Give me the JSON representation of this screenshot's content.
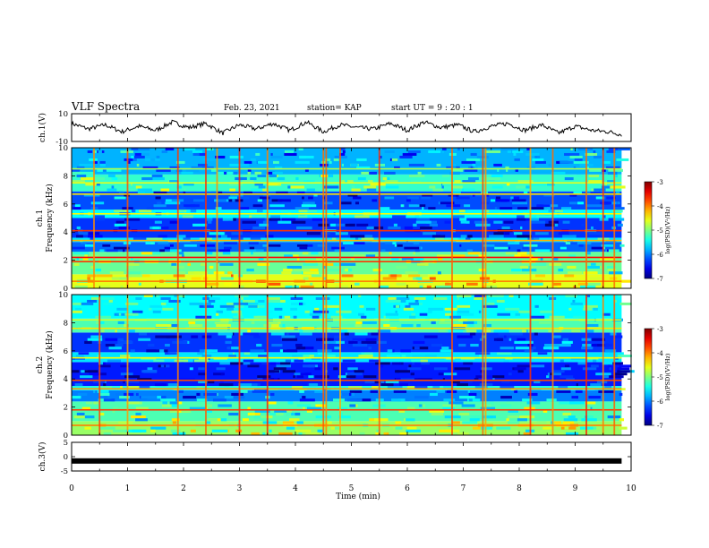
{
  "header": {
    "title": "VLF Spectra",
    "date": "Feb. 23, 2021",
    "station": "station= KAP",
    "start": "start  UT =   9  : 20 : 1"
  },
  "chart_data": [
    {
      "type": "line",
      "panel": "ch1-waveform",
      "ylabel": "ch.1(V)",
      "ylim": [
        -10,
        10
      ],
      "yticks": [
        "10",
        "-10"
      ],
      "x_range": [
        0,
        9.83
      ],
      "series": [
        {
          "x": [
            0,
            0.3,
            0.6,
            0.9,
            1.2,
            1.5,
            1.8,
            2.1,
            2.4,
            2.7,
            3.0,
            3.3,
            3.6,
            3.9,
            4.2,
            4.5,
            4.8,
            5.1,
            5.4,
            5.7,
            6.0,
            6.3,
            6.6,
            6.9,
            7.2,
            7.5,
            7.8,
            8.1,
            8.4,
            8.7,
            9.0,
            9.3,
            9.6,
            9.83
          ],
          "values": [
            3,
            -1,
            2,
            -3,
            1,
            -2,
            4,
            0,
            3,
            -4,
            2,
            -1,
            3,
            -2,
            4,
            -3,
            2,
            0,
            -1,
            3,
            -2,
            4,
            0,
            2,
            -3,
            1,
            3,
            -2,
            2,
            -4,
            1,
            -2,
            -3,
            -5
          ]
        }
      ]
    },
    {
      "type": "heatmap",
      "panel": "ch1-spectrogram",
      "ylabel": "ch.1\nFrequency (kHz)",
      "ylabel_lines": [
        "ch.1",
        "Frequency (kHz)"
      ],
      "ylim": [
        0,
        10
      ],
      "yticks": [
        0,
        2,
        4,
        6,
        8,
        10
      ],
      "colorbar": {
        "label": "log(PSD)(V²/Hz)",
        "ticks": [
          "-3",
          "-4",
          "-5",
          "-6",
          "-7"
        ],
        "range": [
          -7,
          -3
        ]
      },
      "bands": [
        {
          "f": [
            0.0,
            1.0
          ],
          "level": -4.6
        },
        {
          "f": [
            1.0,
            2.6
          ],
          "level": -5.1
        },
        {
          "f": [
            2.6,
            3.3
          ],
          "level": -6.1
        },
        {
          "f": [
            3.3,
            3.6
          ],
          "level": -5.6
        },
        {
          "f": [
            3.6,
            5.0
          ],
          "level": -6.3
        },
        {
          "f": [
            5.0,
            5.6
          ],
          "level": -5.5
        },
        {
          "f": [
            5.6,
            6.9
          ],
          "level": -6.2
        },
        {
          "f": [
            6.9,
            8.1
          ],
          "level": -5.3
        },
        {
          "f": [
            8.1,
            10.0
          ],
          "level": -5.8
        }
      ],
      "lines": [
        {
          "f": 0.5,
          "level": -4.0
        },
        {
          "f": 1.9,
          "level": -3.7
        },
        {
          "f": 2.2,
          "level": -3.5
        },
        {
          "f": 3.4,
          "level": -4.2
        },
        {
          "f": 4.1,
          "level": -3.7
        },
        {
          "f": 5.3,
          "level": -4.5
        },
        {
          "f": 6.7,
          "level": -4.4
        },
        {
          "f": 7.5,
          "level": -4.6
        },
        {
          "f": 8.5,
          "level": -4.8
        }
      ],
      "impulses_min": [
        0.4,
        1.0,
        1.9,
        2.4,
        2.6,
        3.0,
        3.5,
        4.5,
        4.55,
        4.8,
        5.5,
        6.8,
        7.35,
        7.4,
        8.2,
        8.6,
        9.2,
        9.5,
        9.7
      ]
    },
    {
      "type": "heatmap",
      "panel": "ch2-spectrogram",
      "ylabel": "ch.2\nFrequency (kHz)",
      "ylabel_lines": [
        "ch.2",
        "Frequency (kHz)"
      ],
      "ylim": [
        0,
        10
      ],
      "yticks": [
        0,
        2,
        4,
        6,
        8,
        10
      ],
      "colorbar": {
        "label": "log(PSD)(V²/Hz)",
        "ticks": [
          "-3",
          "-4",
          "-5",
          "-6",
          "-7"
        ],
        "range": [
          -7,
          -3
        ]
      },
      "bands": [
        {
          "f": [
            0.0,
            1.0
          ],
          "level": -4.9
        },
        {
          "f": [
            1.0,
            2.4
          ],
          "level": -5.2
        },
        {
          "f": [
            2.4,
            3.2
          ],
          "level": -6.0
        },
        {
          "f": [
            3.2,
            3.5
          ],
          "level": -5.4
        },
        {
          "f": [
            3.5,
            5.2
          ],
          "level": -6.4
        },
        {
          "f": [
            5.2,
            5.9
          ],
          "level": -5.6
        },
        {
          "f": [
            5.9,
            7.3
          ],
          "level": -6.3
        },
        {
          "f": [
            7.3,
            8.3
          ],
          "level": -5.2
        },
        {
          "f": [
            8.3,
            10.0
          ],
          "level": -5.5
        }
      ],
      "lines": [
        {
          "f": 0.7,
          "level": -4.0
        },
        {
          "f": 1.8,
          "level": -3.7
        },
        {
          "f": 3.3,
          "level": -4.1
        },
        {
          "f": 3.9,
          "level": -3.8
        },
        {
          "f": 5.5,
          "level": -4.5
        },
        {
          "f": 7.6,
          "level": -4.4
        },
        {
          "f": 8.2,
          "level": -4.7
        }
      ],
      "impulses_min": [
        0.5,
        1.0,
        1.9,
        2.4,
        3.0,
        3.5,
        4.5,
        4.55,
        4.8,
        5.5,
        6.8,
        7.35,
        7.4,
        8.2,
        8.6,
        9.2,
        9.5,
        9.7
      ]
    },
    {
      "type": "line",
      "panel": "ch3-waveform",
      "ylabel": "ch.3(V)",
      "ylim": [
        -5,
        5
      ],
      "yticks": [
        "5",
        "0",
        "-5"
      ],
      "x_range": [
        0,
        9.83
      ],
      "series": [
        {
          "x": [
            0,
            9.83
          ],
          "values": [
            -1.5,
            -1.5
          ]
        }
      ]
    }
  ],
  "x_axis": {
    "label": "Time (min)",
    "range": [
      0,
      10
    ],
    "ticks": [
      "0",
      "1",
      "2",
      "3",
      "4",
      "5",
      "6",
      "7",
      "8",
      "9",
      "10"
    ]
  }
}
